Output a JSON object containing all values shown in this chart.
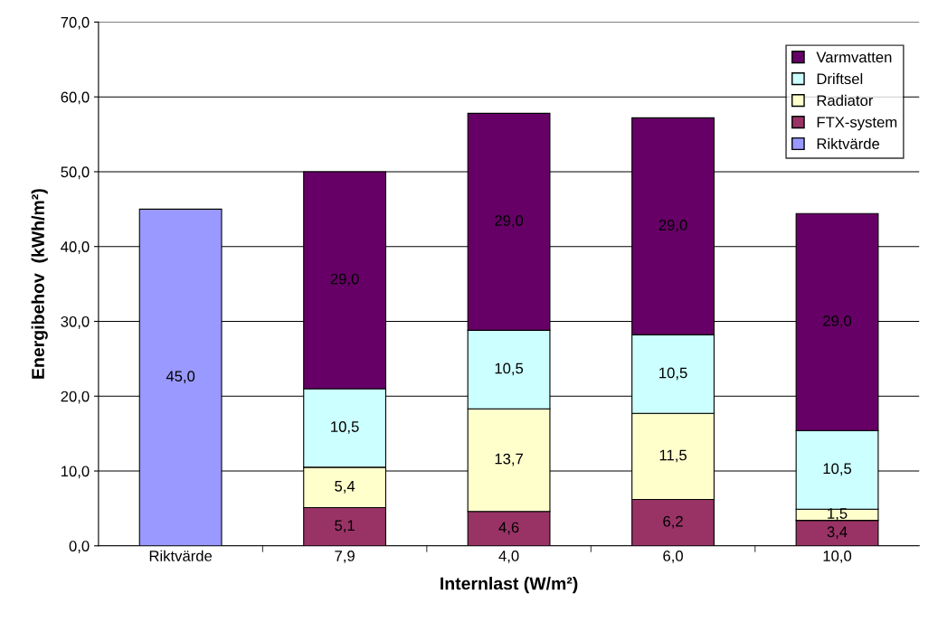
{
  "chart_data": {
    "type": "bar",
    "stacked": true,
    "xlabel": "Internlast (W/m²)",
    "ylabel": "Energibehov  (kWh/m²)",
    "categories": [
      "Riktvärde",
      "7,9",
      "4,0",
      "6,0",
      "10,0"
    ],
    "series": [
      {
        "name": "Riktvärde",
        "color": "#9999ff",
        "values": [
          45.0,
          null,
          null,
          null,
          null
        ],
        "value_labels": [
          "45,0",
          null,
          null,
          null,
          null
        ]
      },
      {
        "name": "FTX-system",
        "color": "#993366",
        "values": [
          null,
          5.1,
          4.6,
          6.2,
          3.4
        ],
        "value_labels": [
          null,
          "5,1",
          "4,6",
          "6,2",
          "3,4"
        ]
      },
      {
        "name": "Radiator",
        "color": "#ffffcc",
        "values": [
          null,
          5.4,
          13.7,
          11.5,
          1.5
        ],
        "value_labels": [
          null,
          "5,4",
          "13,7",
          "11,5",
          "1,5"
        ]
      },
      {
        "name": "Driftsel",
        "color": "#ccffff",
        "values": [
          null,
          10.5,
          10.5,
          10.5,
          10.5
        ],
        "value_labels": [
          null,
          "10,5",
          "10,5",
          "10,5",
          "10,5"
        ]
      },
      {
        "name": "Varmvatten",
        "color": "#660066",
        "values": [
          null,
          29.0,
          29.0,
          29.0,
          29.0
        ],
        "value_labels": [
          null,
          "29,0",
          "29,0",
          "29,0",
          "29,0"
        ]
      }
    ],
    "ylim": [
      0,
      70
    ],
    "yticks": [
      {
        "value": 0,
        "label": "0,0"
      },
      {
        "value": 10,
        "label": "10,0"
      },
      {
        "value": 20,
        "label": "20,0"
      },
      {
        "value": 30,
        "label": "30,0"
      },
      {
        "value": 40,
        "label": "40,0"
      },
      {
        "value": 50,
        "label": "50,0"
      },
      {
        "value": 60,
        "label": "60,0"
      },
      {
        "value": 70,
        "label": "70,0"
      }
    ],
    "grid": "y",
    "legend": "top right"
  }
}
